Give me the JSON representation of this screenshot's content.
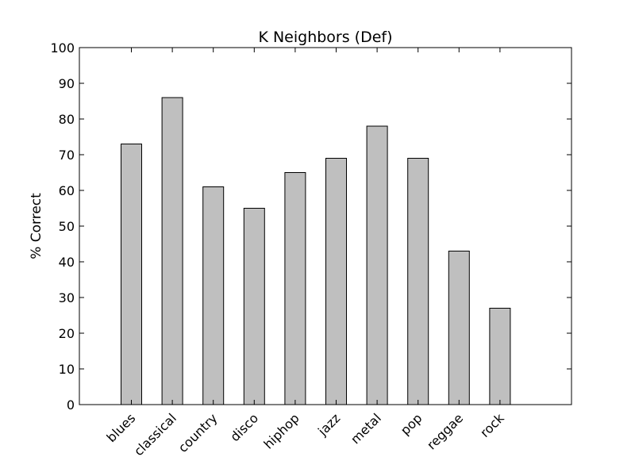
{
  "chart_data": {
    "type": "bar",
    "title": "K Neighbors (Def)",
    "xlabel": "",
    "ylabel": "% Correct",
    "categories": [
      "blues",
      "classical",
      "country",
      "disco",
      "hiphop",
      "jazz",
      "metal",
      "pop",
      "reggae",
      "rock"
    ],
    "values": [
      73,
      86,
      61,
      55,
      65,
      69,
      78,
      69,
      43,
      27
    ],
    "ylim": [
      0,
      100
    ],
    "yticks": [
      0,
      10,
      20,
      30,
      40,
      50,
      60,
      70,
      80,
      90,
      100
    ],
    "grid": false,
    "bar_color": "#bfbfbf",
    "edge_color": "#000000"
  }
}
